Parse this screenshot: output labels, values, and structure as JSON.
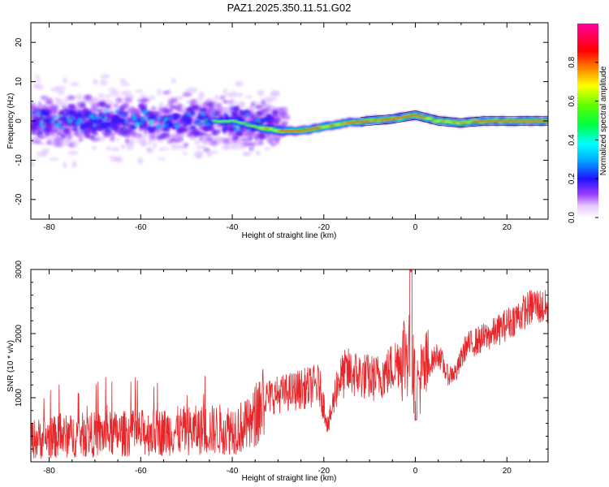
{
  "figure": {
    "title": "PAZ1.2025.350.11.51.G02"
  },
  "chart_data": [
    {
      "type": "heatmap",
      "title": "PAZ1.2025.350.11.51.G02",
      "xlabel": "Height of straight line (km)",
      "ylabel": "Frequency (Hz)",
      "xlim": [
        -84,
        29
      ],
      "ylim": [
        -25,
        25
      ],
      "xticks": [
        -80,
        -60,
        -40,
        -20,
        0,
        20
      ],
      "xtick_labels": [
        "-80",
        "-60",
        "-40",
        "-20",
        "0",
        "20"
      ],
      "yticks": [
        20,
        10,
        0,
        -10,
        -20
      ],
      "ytick_labels": [
        "20",
        "10",
        "0",
        "-10",
        "-20"
      ],
      "colorbar": {
        "label": "Normalized spectral amplitude",
        "range": [
          0,
          1
        ],
        "ticks": [
          0.0,
          0.2,
          0.4,
          0.6,
          0.8
        ],
        "tick_labels": [
          "0.0",
          "0.2",
          "0.4",
          "0.6",
          "0.8"
        ],
        "colormap": "rainbow (white-violet-blue-cyan-green-yellow-red-magenta)"
      },
      "ridge": [
        {
          "x": -40,
          "y": 0.0
        },
        {
          "x": -35,
          "y": -1.5
        },
        {
          "x": -30,
          "y": -2.5
        },
        {
          "x": -25,
          "y": -2.5
        },
        {
          "x": -20,
          "y": -1.5
        },
        {
          "x": -15,
          "y": -0.5
        },
        {
          "x": -10,
          "y": 0.0
        },
        {
          "x": -5,
          "y": 0.5
        },
        {
          "x": 0,
          "y": 1.5
        },
        {
          "x": 5,
          "y": 0.0
        },
        {
          "x": 10,
          "y": -0.5
        },
        {
          "x": 15,
          "y": 0.0
        },
        {
          "x": 20,
          "y": 0.0
        },
        {
          "x": 29,
          "y": 0.0
        }
      ],
      "notes": "Strong coherent signal (red/yellow) along ~0 Hz for heights above -35 km; scattered weak blobs (violet/blue) between -84 and -35 km spanning roughly -12 to +12 Hz."
    },
    {
      "type": "line",
      "xlabel": "Height of straight line (km)",
      "ylabel": "SNR (10 * v/v)",
      "xlim": [
        -84,
        29
      ],
      "ylim": [
        0,
        3000
      ],
      "xticks": [
        -80,
        -60,
        -40,
        -20,
        0,
        20
      ],
      "xtick_labels": [
        "-80",
        "-60",
        "-40",
        "-20",
        "0",
        "20"
      ],
      "yticks": [
        1000,
        2000,
        3000
      ],
      "ytick_labels": [
        "1000",
        "2000",
        "3000"
      ],
      "series": [
        {
          "name": "SNR",
          "color": "#e8262a",
          "x": [
            -84,
            -80,
            -76,
            -72,
            -68,
            -64,
            -60,
            -56,
            -52,
            -48,
            -44,
            -40,
            -36,
            -33,
            -30,
            -27,
            -24,
            -21,
            -19,
            -17,
            -15,
            -12,
            -9,
            -6,
            -3,
            -1,
            0,
            1,
            3,
            5,
            7,
            9,
            11,
            14,
            17,
            20,
            23,
            26,
            29
          ],
          "values": [
            350,
            380,
            400,
            420,
            430,
            440,
            450,
            460,
            480,
            490,
            500,
            520,
            560,
            1000,
            1050,
            1100,
            1150,
            1200,
            550,
            1250,
            1400,
            1350,
            1300,
            1400,
            1650,
            1800,
            1100,
            1300,
            1500,
            1700,
            1350,
            1400,
            1800,
            1900,
            2000,
            2150,
            2300,
            2450,
            2380
          ]
        }
      ]
    }
  ]
}
